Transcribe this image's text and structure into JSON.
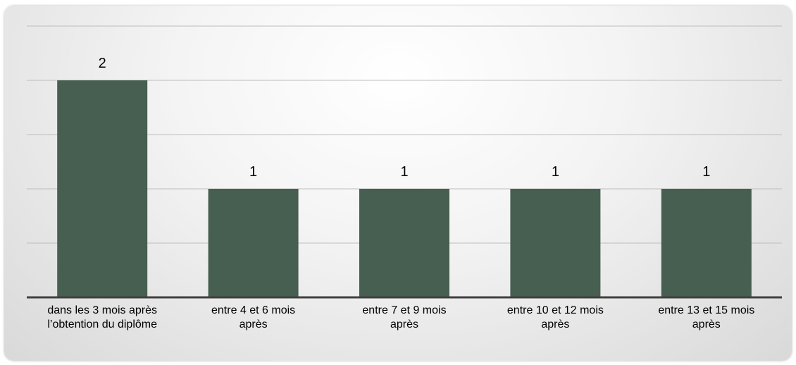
{
  "chart_data": {
    "type": "bar",
    "categories": [
      "dans les 3 mois après l’obtention du diplôme",
      "entre 4 et 6 mois après",
      "entre 7 et 9 mois après",
      "entre 10 et 12 mois après",
      "entre 13 et 15 mois après"
    ],
    "values": [
      2,
      1,
      1,
      1,
      1
    ],
    "color": "#475f51",
    "ylim": [
      0,
      2.5
    ],
    "yticks": [
      0,
      0.5,
      1,
      1.5,
      2,
      2.5
    ],
    "grid": true
  }
}
